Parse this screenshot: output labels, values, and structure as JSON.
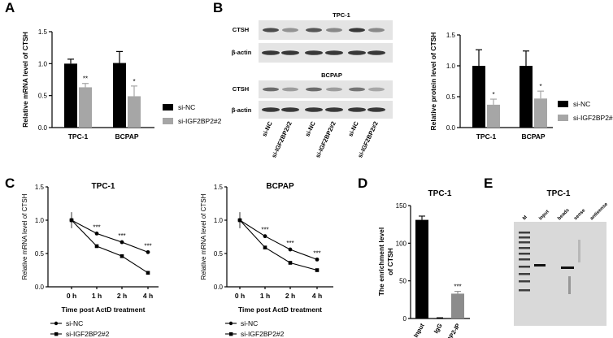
{
  "panels": {
    "A": "A",
    "B": "B",
    "C": "C",
    "D": "D",
    "E": "E"
  },
  "colors": {
    "siNC": "#000000",
    "siIGF": "#a6a6a6",
    "blotBg": "#e4e4e4",
    "blotBand": "#1a1a1a"
  },
  "legend": {
    "siNC": "si-NC",
    "siIGF": "si-IGF2BP2#2"
  },
  "chart_data": [
    {
      "id": "A",
      "type": "bar",
      "ylabel": "Relative mRNA level of CTSH",
      "ylim": [
        0,
        1.5
      ],
      "yticks": [
        "0.0",
        "0.5",
        "1.0",
        "1.5"
      ],
      "ytickvals": [
        0,
        0.5,
        1.0,
        1.5
      ],
      "categories": [
        "TPC-1",
        "BCPAP"
      ],
      "series": [
        {
          "name": "si-NC",
          "values": [
            1.0,
            1.01
          ],
          "errors": [
            0.07,
            0.18
          ]
        },
        {
          "name": "si-IGF2BP2#2",
          "values": [
            0.63,
            0.49
          ],
          "errors": [
            0.06,
            0.16
          ]
        }
      ],
      "significance": [
        "**",
        "*"
      ]
    },
    {
      "id": "B",
      "type": "bar",
      "ylabel": "Relative protein level of CTSH",
      "ylim": [
        0,
        1.5
      ],
      "yticks": [
        "0.0",
        "0.5",
        "1.0",
        "1.5"
      ],
      "ytickvals": [
        0,
        0.5,
        1.0,
        1.5
      ],
      "categories": [
        "TPC-1",
        "BCPAP"
      ],
      "series": [
        {
          "name": "si-NC",
          "values": [
            1.0,
            1.0
          ],
          "errors": [
            0.26,
            0.24
          ]
        },
        {
          "name": "si-IGF2BP2#2",
          "values": [
            0.37,
            0.47
          ],
          "errors": [
            0.09,
            0.12
          ]
        }
      ],
      "significance": [
        "*",
        "*"
      ]
    },
    {
      "id": "C1",
      "type": "line",
      "title": "TPC-1",
      "xlabel": "Time post ActD treatment",
      "ylabel": "Relative mRNA level of CTSH",
      "categories": [
        "0 h",
        "1 h",
        "2 h",
        "4 h"
      ],
      "ylim": [
        0,
        1.5
      ],
      "yticks": [
        "0.0",
        "0.5",
        "1.0",
        "1.5"
      ],
      "ytickvals": [
        0,
        0.5,
        1.0,
        1.5
      ],
      "series": [
        {
          "name": "si-NC",
          "marker": "circle",
          "values": [
            1.0,
            0.8,
            0.67,
            0.52
          ]
        },
        {
          "name": "si-IGF2BP2#2",
          "marker": "square",
          "values": [
            1.0,
            0.61,
            0.46,
            0.21
          ]
        }
      ],
      "significance": [
        "",
        "***",
        "***",
        "***"
      ]
    },
    {
      "id": "C2",
      "type": "line",
      "title": "BCPAP",
      "xlabel": "Time post ActD treatment",
      "ylabel": "Relative mRNA level of CTSH",
      "categories": [
        "0 h",
        "1 h",
        "2 h",
        "4 h"
      ],
      "ylim": [
        0,
        1.5
      ],
      "yticks": [
        "0.0",
        "0.5",
        "1.0",
        "1.5"
      ],
      "ytickvals": [
        0,
        0.5,
        1.0,
        1.5
      ],
      "series": [
        {
          "name": "si-NC",
          "marker": "circle",
          "values": [
            1.0,
            0.76,
            0.56,
            0.41
          ]
        },
        {
          "name": "si-IGF2BP2#2",
          "marker": "square",
          "values": [
            1.0,
            0.59,
            0.36,
            0.25
          ]
        }
      ],
      "significance": [
        "",
        "***",
        "***",
        "***"
      ]
    },
    {
      "id": "D",
      "type": "bar",
      "title": "TPC-1",
      "ylabel": "The enrichment level of CTSH",
      "ylim": [
        0,
        150
      ],
      "yticks": [
        "0",
        "50",
        "100",
        "150"
      ],
      "ytickvals": [
        0,
        50,
        100,
        150
      ],
      "categories": [
        "Input",
        "IgG",
        "IGF2BP2-IP"
      ],
      "values": [
        131,
        0.5,
        33
      ],
      "errors": [
        5,
        0.5,
        3
      ],
      "colors": [
        "#000000",
        "#000000",
        "#8c8c8c"
      ],
      "significance": [
        "",
        "",
        "***"
      ]
    }
  ],
  "blot": {
    "top_title": "TPC-1",
    "bottom_title": "BCPAP",
    "ctsh_label": "CTSH",
    "actin_label": "β-actin",
    "lanes": [
      "si-NC",
      "si-IGF2BP2#2",
      "si-NC",
      "si-IGF2BP2#2",
      "si-NC",
      "si-IGF2BP2#2"
    ],
    "ctsh_top_intensity": [
      0.75,
      0.4,
      0.7,
      0.45,
      0.85,
      0.45
    ],
    "ctsh_bottom_intensity": [
      0.6,
      0.35,
      0.6,
      0.35,
      0.55,
      0.3
    ]
  },
  "gel": {
    "title": "TPC-1",
    "lanes": [
      "M",
      "Input",
      "beads",
      "sense",
      "antisense"
    ]
  }
}
